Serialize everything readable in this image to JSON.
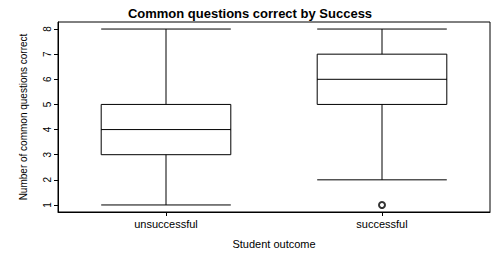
{
  "chart_data": {
    "type": "boxplot",
    "title": "Common questions correct by Success",
    "x_label": "Student outcome",
    "y_label": "Number of common questions correct",
    "categories": [
      "unsuccessful",
      "successful"
    ],
    "values": [
      [
        1,
        3,
        4,
        5,
        8
      ],
      [
        2,
        5,
        6,
        7,
        8
      ]
    ],
    "outliers": [
      [],
      [
        1
      ]
    ],
    "color": "#000000",
    "ylim": [
      0.72,
      8.28
    ],
    "yticks": [
      1,
      2,
      3,
      4,
      5,
      6,
      7,
      8
    ],
    "grid": false
  }
}
